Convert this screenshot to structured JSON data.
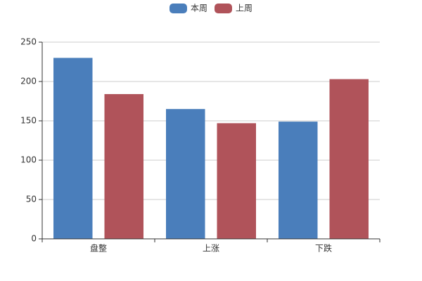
{
  "chart_data": {
    "type": "bar",
    "categories": [
      "盘整",
      "上涨",
      "下跌"
    ],
    "series": [
      {
        "name": "本周",
        "color": "#4a7ebb",
        "values": [
          230,
          165,
          149
        ]
      },
      {
        "name": "上周",
        "color": "#b0535a",
        "values": [
          184,
          147,
          203
        ]
      }
    ],
    "ylim": [
      0,
      250
    ],
    "yticks": [
      0,
      50,
      100,
      150,
      200,
      250
    ],
    "grid": true,
    "legend": "top"
  }
}
